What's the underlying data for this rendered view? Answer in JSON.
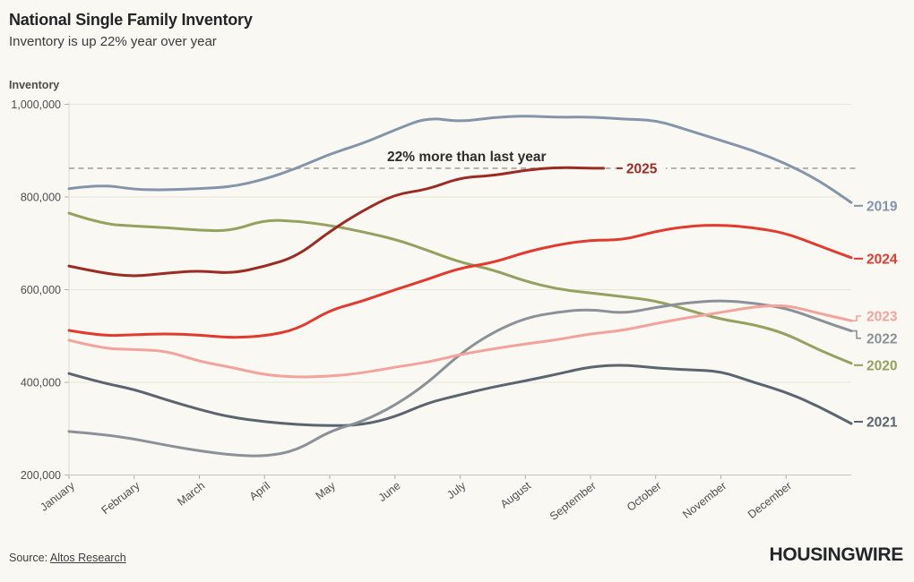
{
  "page": {
    "title": "National Single Family Inventory",
    "subtitle": "Inventory is up 22% year over year",
    "source_prefix": "Source:",
    "source_link": "Altos Research",
    "brand": "HOUSINGWIRE"
  },
  "chart_data": {
    "type": "line",
    "title": "National Single Family Inventory",
    "subtitle": "Inventory is up 22% year over year",
    "ylabel": "Inventory",
    "xlabel": "",
    "grid": "horizontal",
    "legend_position": "right-edge-labels",
    "ylim": [
      200000,
      1000000
    ],
    "y_ticks": [
      {
        "value": 1000000,
        "label": "1,000,000"
      },
      {
        "value": 800000,
        "label": "800,000"
      },
      {
        "value": 600000,
        "label": "600,000"
      },
      {
        "value": 400000,
        "label": "400,000"
      },
      {
        "value": 200000,
        "label": "200,000"
      }
    ],
    "x_tick_labels": [
      "January",
      "February",
      "March",
      "April",
      "May",
      "June",
      "July",
      "August",
      "September",
      "October",
      "November",
      "December"
    ],
    "reference_line": {
      "value": 862000,
      "style": "dashed",
      "color": "#a3a39e"
    },
    "annotation": {
      "text": "22% more than last year",
      "color": "#2d2d2d",
      "x_month": 4.88,
      "y_value": 877000
    },
    "series": [
      {
        "name": "2019",
        "color": "#8495aa",
        "connector": "dash",
        "label_value": 781000,
        "x": [
          0,
          0.5,
          1,
          1.5,
          2,
          2.5,
          3,
          3.5,
          4,
          4.5,
          5,
          5.5,
          6,
          6.5,
          7,
          7.5,
          8,
          8.5,
          9,
          9.5,
          10,
          10.5,
          11,
          11.5,
          12
        ],
        "values": [
          818000,
          827000,
          816000,
          815000,
          818000,
          822000,
          838000,
          862000,
          893000,
          915000,
          945000,
          972000,
          962000,
          972000,
          975000,
          972000,
          973000,
          968000,
          966000,
          944000,
          922000,
          900000,
          872000,
          836000,
          788000
        ]
      },
      {
        "name": "2020",
        "color": "#93a25f",
        "connector": "dash",
        "label_value": 437000,
        "x": [
          0,
          0.5,
          1,
          1.5,
          2,
          2.5,
          3,
          3.5,
          4,
          4.5,
          5,
          5.5,
          6,
          6.5,
          7,
          7.5,
          8,
          8.5,
          9,
          9.5,
          10,
          10.5,
          11,
          11.5,
          12
        ],
        "values": [
          765000,
          742000,
          737000,
          734000,
          728000,
          727000,
          751000,
          748000,
          739000,
          725000,
          709000,
          685000,
          659000,
          643000,
          618000,
          601000,
          593000,
          585000,
          576000,
          556000,
          536000,
          525000,
          505000,
          470000,
          441000
        ]
      },
      {
        "name": "2021",
        "color": "#5b6570",
        "connector": "dash",
        "label_value": 315000,
        "x": [
          0,
          0.5,
          1,
          1.5,
          2,
          2.5,
          3,
          3.5,
          4,
          4.5,
          5,
          5.5,
          6,
          6.5,
          7,
          7.5,
          8,
          8.5,
          9,
          9.5,
          10,
          10.5,
          11,
          11.5,
          12
        ],
        "values": [
          419000,
          399000,
          385000,
          362000,
          341000,
          324000,
          315000,
          309000,
          306000,
          308000,
          325000,
          356000,
          373000,
          390000,
          403000,
          418000,
          434000,
          438000,
          431000,
          427000,
          424000,
          400000,
          379000,
          348000,
          311000
        ]
      },
      {
        "name": "2022",
        "color": "#8b9198",
        "connector": "elbow",
        "label_value": 495000,
        "x": [
          0,
          0.5,
          1,
          1.5,
          2,
          2.5,
          3,
          3.5,
          4,
          4.5,
          5,
          5.5,
          6,
          6.5,
          7,
          7.5,
          8,
          8.5,
          9,
          9.5,
          10,
          10.5,
          11,
          11.5,
          12
        ],
        "values": [
          294000,
          288000,
          278000,
          264000,
          252000,
          243000,
          240000,
          253000,
          295000,
          315000,
          350000,
          398000,
          462000,
          508000,
          539000,
          552000,
          558000,
          548000,
          562000,
          572000,
          577000,
          571000,
          560000,
          535000,
          511000
        ]
      },
      {
        "name": "2023",
        "color": "#f4a29c",
        "connector": "elbow",
        "label_value": 543000,
        "x": [
          0,
          0.5,
          1,
          1.5,
          2,
          2.5,
          3,
          3.5,
          4,
          4.5,
          5,
          5.5,
          6,
          6.5,
          7,
          7.5,
          8,
          8.5,
          9,
          9.5,
          10,
          10.5,
          11,
          11.5,
          12
        ],
        "values": [
          491000,
          473000,
          471000,
          468000,
          445000,
          432000,
          416000,
          411000,
          413000,
          420000,
          433000,
          443000,
          460000,
          472000,
          483000,
          492000,
          505000,
          512000,
          527000,
          540000,
          551000,
          563000,
          567000,
          549000,
          533000
        ]
      },
      {
        "name": "2024",
        "color": "#e23a2e",
        "connector": "dash",
        "label_value": 667000,
        "x": [
          0,
          0.5,
          1,
          1.5,
          2,
          2.5,
          3,
          3.5,
          4,
          4.5,
          5,
          5.5,
          6,
          6.5,
          7,
          7.5,
          8,
          8.5,
          9,
          9.5,
          10,
          10.5,
          11,
          11.5,
          12
        ],
        "values": [
          512000,
          500000,
          503000,
          505000,
          502000,
          496000,
          500000,
          514000,
          556000,
          575000,
          600000,
          622000,
          647000,
          658000,
          681000,
          697000,
          707000,
          707000,
          726000,
          737000,
          740000,
          734000,
          722000,
          695000,
          669000
        ]
      },
      {
        "name": "2025",
        "color": "#9c2b24",
        "connector": "inline",
        "label_value": 862000,
        "label_x_month": 8.52,
        "x": [
          0,
          0.5,
          1,
          1.5,
          2,
          2.5,
          3,
          3.5,
          4,
          4.5,
          5,
          5.5,
          6,
          6.5,
          7,
          7.5,
          8,
          8.2
        ],
        "values": [
          651000,
          636000,
          628000,
          636000,
          641000,
          635000,
          650000,
          672000,
          726000,
          770000,
          806000,
          816000,
          842000,
          846000,
          858000,
          864000,
          862000,
          862000
        ]
      }
    ]
  }
}
